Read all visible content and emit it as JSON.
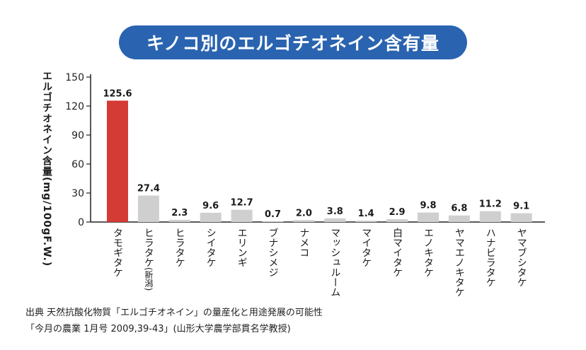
{
  "title": "キノコ別のエルゴチオネイン含有量",
  "source": {
    "line1": "出典 天然抗酸化物質「エルゴチオネイン」の量産化と用途発展の可能性",
    "line2": "「今月の農業 1月号 2009,39-43」(山形大学農学部貫名学教授)"
  },
  "colors": {
    "highlight": "#d43b35",
    "bar": "#cfcfcf",
    "title_bg": "#2a64b0"
  },
  "chart_data": {
    "type": "bar",
    "title": "キノコ別のエルゴチオネイン含有量",
    "ylabel": "エルゴチオネイン含量(mg/100gF.W.)",
    "xlabel": "",
    "ylim": [
      0,
      150
    ],
    "yticks": [
      0,
      30,
      60,
      90,
      120,
      150
    ],
    "grid": false,
    "categories": [
      {
        "name": "タモギタケ",
        "sub": ""
      },
      {
        "name": "ヒラタケ",
        "sub": "(新潟)"
      },
      {
        "name": "ヒラタケ",
        "sub": ""
      },
      {
        "name": "シイタケ",
        "sub": ""
      },
      {
        "name": "エリンギ",
        "sub": ""
      },
      {
        "name": "ブナシメジ",
        "sub": ""
      },
      {
        "name": "ナメコ",
        "sub": ""
      },
      {
        "name": "マッシュルーム",
        "sub": ""
      },
      {
        "name": "マイタケ",
        "sub": ""
      },
      {
        "name": "白マイタケ",
        "sub": ""
      },
      {
        "name": "エノキタケ",
        "sub": ""
      },
      {
        "name": "ヤマエノキタケ",
        "sub": ""
      },
      {
        "name": "ハナビラタケ",
        "sub": ""
      },
      {
        "name": "ヤマブシタケ",
        "sub": ""
      }
    ],
    "values": [
      125.6,
      27.4,
      2.3,
      9.6,
      12.7,
      0.7,
      2.0,
      3.8,
      1.4,
      2.9,
      9.8,
      6.8,
      11.2,
      9.1
    ],
    "value_labels": [
      "125.6",
      "27.4",
      "2.3",
      "9.6",
      "12.7",
      "0.7",
      "2.0",
      "3.8",
      "1.4",
      "2.9",
      "9.8",
      "6.8",
      "11.2",
      "9.1"
    ],
    "highlight_index": 0
  }
}
